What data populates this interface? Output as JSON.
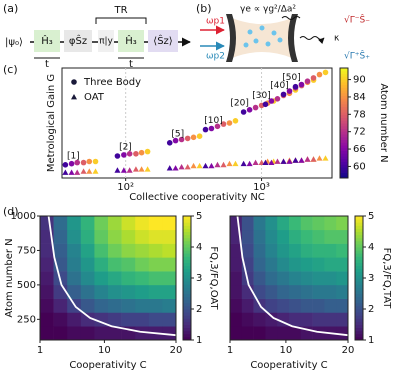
{
  "panel_labels": [
    "(a)",
    "(b)",
    "(c)",
    "(d)"
  ],
  "diagram_a": {
    "state": "|ψ₀⟩",
    "steps": [
      "Ĥ₃",
      "φŜz",
      "π|y",
      "Ĥ₃",
      "⟨Ŝz⟩"
    ],
    "bracket": "TR",
    "durations": [
      "t",
      "t"
    ]
  },
  "diagram_b": {
    "rate": "γe ∝ γg²/Δa²",
    "pumps": [
      "ωp1",
      "ωp2"
    ],
    "outputs": [
      "√Γ⁻Ŝ₋",
      "κ",
      "√Γ⁺Ŝ₊"
    ]
  },
  "chart_data": [
    {
      "type": "scatter",
      "y_label": "Metrological Gain G",
      "x_label": "Collective cooperativity NC",
      "log_x": true,
      "xlim": [
        34,
        3300
      ],
      "xticks": [
        {
          "value": 100,
          "label": "10²"
        },
        {
          "value": 1000,
          "label": "10³"
        }
      ],
      "ylim": [
        0,
        10
      ],
      "grid": true,
      "legend": "upper left",
      "series": [
        {
          "name": "Three Body",
          "marker": "circle",
          "x": [
            36,
            40,
            44,
            49,
            54,
            60,
            87,
            97,
            107,
            119,
            131,
            145,
            211,
            233,
            258,
            286,
            316,
            350,
            387,
            428,
            474,
            525,
            581,
            643,
            738,
            817,
            904,
            1001,
            1108,
            1227,
            1069,
            1183,
            1310,
            1450,
            1605,
            1777,
            1452,
            1607,
            1779,
            1970,
            2180,
            2414,
            1778,
            1968,
            2179,
            2412,
            2670,
            2956
          ],
          "values": [
            1.2,
            1.3,
            1.4,
            1.4,
            1.5,
            1.5,
            2.0,
            2.1,
            2.2,
            2.2,
            2.3,
            2.4,
            3.2,
            3.4,
            3.5,
            3.6,
            3.7,
            3.8,
            4.4,
            4.5,
            4.7,
            4.9,
            5.0,
            5.2,
            6.0,
            6.2,
            6.4,
            6.6,
            6.8,
            7.0,
            6.7,
            7.0,
            7.2,
            7.5,
            7.7,
            8.0,
            7.6,
            7.9,
            8.2,
            8.4,
            8.7,
            8.9,
            8.3,
            8.5,
            8.8,
            9.1,
            9.4,
            9.6
          ],
          "atom_number": [
            60,
            66,
            72,
            78,
            84,
            90,
            60,
            66,
            72,
            78,
            84,
            90,
            60,
            66,
            72,
            78,
            84,
            90,
            60,
            66,
            72,
            78,
            84,
            90,
            60,
            66,
            72,
            78,
            84,
            90,
            60,
            66,
            72,
            78,
            84,
            90,
            60,
            66,
            72,
            78,
            84,
            90,
            60,
            66,
            72,
            78,
            84,
            90
          ]
        },
        {
          "name": "OAT",
          "marker": "triangle",
          "x": [
            36,
            40,
            44,
            49,
            54,
            60,
            87,
            97,
            107,
            119,
            131,
            145,
            211,
            233,
            258,
            286,
            316,
            350,
            387,
            428,
            474,
            525,
            581,
            643,
            738,
            817,
            904,
            1001,
            1108,
            1227,
            1069,
            1183,
            1310,
            1450,
            1605,
            1777,
            1452,
            1607,
            1779,
            1970,
            2180,
            2414,
            1778,
            1968,
            2179,
            2412,
            2670,
            2956
          ],
          "values": [
            0.5,
            0.5,
            0.5,
            0.6,
            0.6,
            0.6,
            0.7,
            0.7,
            0.7,
            0.8,
            0.8,
            0.8,
            0.9,
            0.9,
            1.0,
            1.0,
            1.1,
            1.1,
            1.1,
            1.1,
            1.2,
            1.2,
            1.3,
            1.3,
            1.3,
            1.3,
            1.4,
            1.4,
            1.5,
            1.5,
            1.4,
            1.4,
            1.5,
            1.5,
            1.6,
            1.6,
            1.5,
            1.5,
            1.6,
            1.6,
            1.7,
            1.7,
            1.6,
            1.6,
            1.7,
            1.7,
            1.8,
            1.8
          ],
          "atom_number": [
            60,
            66,
            72,
            78,
            84,
            90,
            60,
            66,
            72,
            78,
            84,
            90,
            60,
            66,
            72,
            78,
            84,
            90,
            60,
            66,
            72,
            78,
            84,
            90,
            60,
            66,
            72,
            78,
            84,
            90,
            60,
            66,
            72,
            78,
            84,
            90,
            60,
            66,
            72,
            78,
            84,
            90,
            60,
            66,
            72,
            78,
            84,
            90
          ]
        }
      ],
      "annotations": [
        "[1]",
        "[2]",
        "[5]",
        "[10]",
        "[20]",
        "[30]",
        "[40]",
        "[50]"
      ],
      "colorbar": {
        "label": "Atom number N",
        "lim": [
          56,
          94
        ],
        "ticks": [
          60,
          66,
          72,
          78,
          84,
          90
        ],
        "colormap": [
          "#0d0887",
          "#5302a3",
          "#8b0aa5",
          "#b83289",
          "#db5c68",
          "#f48849",
          "#febd2a",
          "#f0f921"
        ]
      }
    },
    {
      "type": "heatmap",
      "x_label": "Cooperativity C",
      "y_label": "Atom number N",
      "xlim": [
        1,
        20
      ],
      "xticks": [
        1,
        10,
        20
      ],
      "ylim": [
        100,
        1000
      ],
      "yticks": [
        250,
        500,
        750,
        1000
      ],
      "x_bins": [
        1,
        2.9,
        4.8,
        6.7,
        8.6,
        10.5,
        12.4,
        14.3,
        16.2,
        18.1,
        20
      ],
      "y_bins": [
        100,
        200,
        300,
        400,
        500,
        600,
        700,
        800,
        900,
        1000
      ],
      "z": [
        [
          1.0,
          1.0,
          1.1,
          1.1,
          1.2,
          1.2,
          1.2,
          1.3,
          1.3,
          1.3
        ],
        [
          1.0,
          1.1,
          1.3,
          1.5,
          1.6,
          1.7,
          1.8,
          1.8,
          1.9,
          1.9
        ],
        [
          1.1,
          1.4,
          1.8,
          2.1,
          2.3,
          2.4,
          2.5,
          2.6,
          2.6,
          2.7
        ],
        [
          1.2,
          1.7,
          2.2,
          2.5,
          2.8,
          3.0,
          3.1,
          3.2,
          3.3,
          3.3
        ],
        [
          1.3,
          1.9,
          2.5,
          2.9,
          3.2,
          3.4,
          3.6,
          3.7,
          3.8,
          3.8
        ],
        [
          1.4,
          2.1,
          2.7,
          3.1,
          3.5,
          3.8,
          3.9,
          4.1,
          4.2,
          4.2
        ],
        [
          1.5,
          2.2,
          2.8,
          3.3,
          3.8,
          4.1,
          4.3,
          4.4,
          4.5,
          4.6
        ],
        [
          1.5,
          2.3,
          3.0,
          3.5,
          4.0,
          4.3,
          4.5,
          4.7,
          4.8,
          4.8
        ],
        [
          1.6,
          2.4,
          3.1,
          3.6,
          4.1,
          4.4,
          4.7,
          4.9,
          5.0,
          5.0
        ]
      ],
      "curve": {
        "color": "#ffffff",
        "x": [
          2.2,
          3,
          4,
          6,
          8,
          11,
          15,
          20
        ],
        "values": [
          1000,
          700,
          500,
          340,
          260,
          200,
          160,
          135
        ]
      },
      "colorbar": {
        "label": "FQ,3/FQ,OAT",
        "lim": [
          1,
          5
        ],
        "ticks": [
          1,
          2,
          3,
          4,
          5
        ],
        "colormap": [
          "#440154",
          "#482878",
          "#3e4989",
          "#31688e",
          "#26828e",
          "#1f9e89",
          "#35b779",
          "#6ece58",
          "#b5de2b",
          "#fde725"
        ]
      }
    },
    {
      "type": "heatmap",
      "x_label": "Cooperativity C",
      "xlim": [
        1,
        20
      ],
      "xticks": [
        1,
        10,
        20
      ],
      "ylim": [
        100,
        1000
      ],
      "x_bins": [
        1,
        2.9,
        4.8,
        6.7,
        8.6,
        10.5,
        12.4,
        14.3,
        16.2,
        18.1,
        20
      ],
      "y_bins": [
        100,
        200,
        300,
        400,
        500,
        600,
        700,
        800,
        900,
        1000
      ],
      "z": [
        [
          1.0,
          1.0,
          1.0,
          1.1,
          1.1,
          1.1,
          1.2,
          1.2,
          1.2,
          1.2
        ],
        [
          1.0,
          1.1,
          1.2,
          1.3,
          1.4,
          1.5,
          1.5,
          1.6,
          1.6,
          1.6
        ],
        [
          1.1,
          1.3,
          1.6,
          1.8,
          1.9,
          2.0,
          2.1,
          2.1,
          2.2,
          2.2
        ],
        [
          1.2,
          1.5,
          1.9,
          2.1,
          2.3,
          2.4,
          2.5,
          2.6,
          2.6,
          2.7
        ],
        [
          1.2,
          1.7,
          2.1,
          2.4,
          2.6,
          2.8,
          2.9,
          3.0,
          3.0,
          3.1
        ],
        [
          1.3,
          1.8,
          2.3,
          2.6,
          2.9,
          3.1,
          3.2,
          3.3,
          3.4,
          3.4
        ],
        [
          1.3,
          1.9,
          2.4,
          2.8,
          3.1,
          3.3,
          3.5,
          3.6,
          3.6,
          3.7
        ],
        [
          1.4,
          2.0,
          2.5,
          2.9,
          3.2,
          3.5,
          3.7,
          3.8,
          3.9,
          3.9
        ],
        [
          1.4,
          2.0,
          2.6,
          3.0,
          3.4,
          3.7,
          3.9,
          4.0,
          4.1,
          4.2
        ]
      ],
      "curve": {
        "color": "#ffffff",
        "x": [
          2.2,
          3,
          4,
          6,
          8,
          11,
          15,
          20
        ],
        "values": [
          1000,
          700,
          500,
          340,
          260,
          200,
          160,
          135
        ]
      },
      "colorbar": {
        "label": "FQ,3/FQ,TAT",
        "lim": [
          1,
          5
        ],
        "ticks": [
          1,
          2,
          3,
          4,
          5
        ],
        "colormap": [
          "#440154",
          "#482878",
          "#3e4989",
          "#31688e",
          "#26828e",
          "#1f9e89",
          "#35b779",
          "#6ece58",
          "#b5de2b",
          "#fde725"
        ]
      }
    }
  ]
}
